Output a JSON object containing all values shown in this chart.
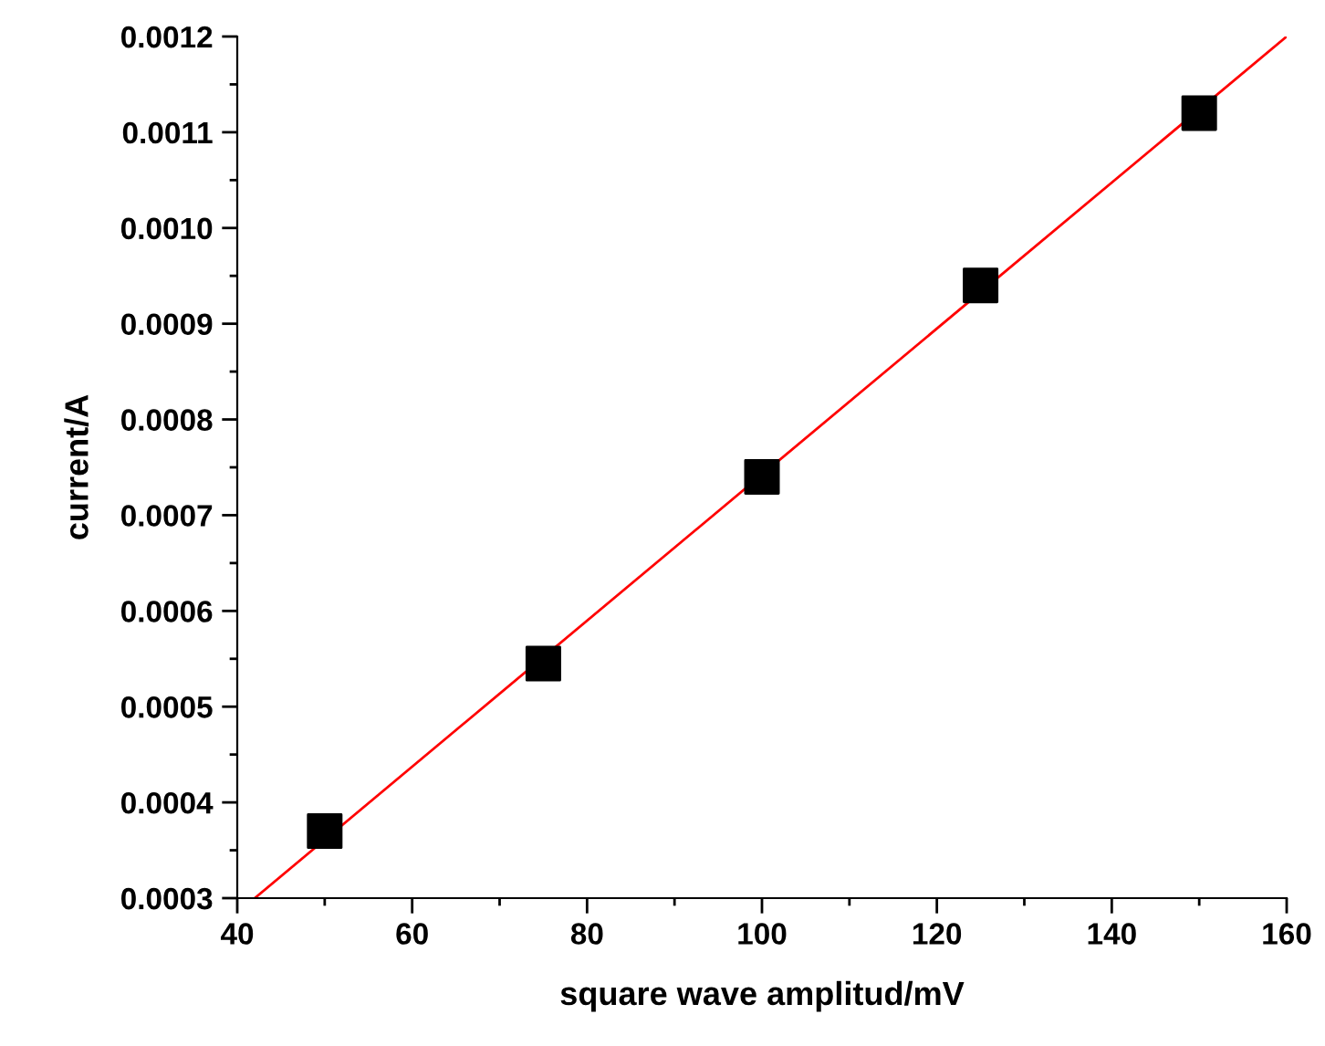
{
  "chart_data": {
    "type": "scatter",
    "xlabel": "square wave amplitud/mV",
    "ylabel": "current/A",
    "x": [
      50,
      75,
      100,
      125,
      150
    ],
    "series": [
      {
        "color": "#000000",
        "marker": "square",
        "values": [
          0.00037,
          0.000545,
          0.00074,
          0.00094,
          0.00112
        ]
      },
      {
        "type": "line",
        "color": "#ff0000",
        "marker": "none",
        "line_style": "solid",
        "x": [
          42,
          160
        ],
        "values": [
          0.0003,
          0.0012
        ]
      }
    ],
    "xlim": [
      40,
      160
    ],
    "xticks": [
      40,
      60,
      80,
      100,
      120,
      140,
      160
    ],
    "ylim": [
      0.0003,
      0.0012
    ],
    "yticks": [
      {
        "value": 0.0003,
        "label": "0.0003"
      },
      {
        "value": 0.0004,
        "label": "0.0004"
      },
      {
        "value": 0.0005,
        "label": "0.0005"
      },
      {
        "value": 0.0006,
        "label": "0.0006"
      },
      {
        "value": 0.0007,
        "label": "0.0007"
      },
      {
        "value": 0.0008,
        "label": "0.0008"
      },
      {
        "value": 0.0009,
        "label": "0.0009"
      },
      {
        "value": 0.001,
        "label": "0.0010"
      },
      {
        "value": 0.0011,
        "label": "0.0011"
      },
      {
        "value": 0.0012,
        "label": "0.0012"
      }
    ],
    "grid": false,
    "legend": false
  }
}
